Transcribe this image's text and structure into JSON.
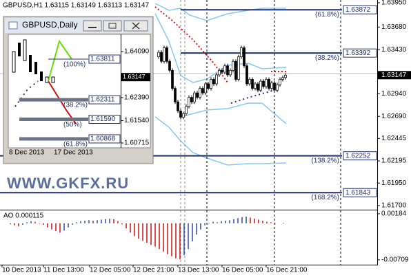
{
  "header": "GBPUSD,H1  1.63115 1.63149 1.63113 1.63147",
  "watermark": "WWW.GKFX.RU",
  "chart_data": [
    {
      "type": "candlestick",
      "ylim": [
        1.617,
        1.6395
      ],
      "yticks": [
        {
          "value": 1.6395,
          "label": "1.63950"
        },
        {
          "value": 1.6368,
          "label": "1.63680"
        },
        {
          "value": 1.6343,
          "label": "1.63430"
        },
        {
          "value": 1.6294,
          "label": "1.62940"
        },
        {
          "value": 1.6269,
          "label": "1.62690"
        },
        {
          "value": 1.62445,
          "label": "1.62445"
        },
        {
          "value": 1.62195,
          "label": "1.62195"
        },
        {
          "value": 1.6195,
          "label": "1.61950"
        },
        {
          "value": 1.617,
          "label": "1.61700"
        }
      ],
      "last": {
        "value": 1.63147,
        "label": "1.63147"
      },
      "levels": [
        {
          "value": 1.63872,
          "label": "1.63872",
          "fib": "(61.8%)"
        },
        {
          "value": 1.63392,
          "label": "1.63392",
          "fib": "(38.2%)"
        },
        {
          "value": 1.62252,
          "label": "1.62252",
          "fib": "(138.2%)"
        },
        {
          "value": 1.61843,
          "label": "1.61843",
          "fib": "(168.2%)"
        }
      ],
      "time_labels": [
        "10 Dec 2013",
        "11 Dec 13:00",
        "12 Dec 05:00",
        "12 Dec 21:00",
        "13 Dec 13:00",
        "16 Dec 05:00",
        "16 Dec 21:00"
      ],
      "values": [
        1.6335,
        1.634,
        1.633,
        1.6345,
        1.633,
        1.632,
        1.63,
        1.6285,
        1.6275,
        1.6268,
        1.6272,
        1.628,
        1.629,
        1.6285,
        1.6295,
        1.629,
        1.63,
        1.6295,
        1.6305,
        1.63,
        1.631,
        1.6305,
        1.6315,
        1.632,
        1.6318,
        1.6325,
        1.6315,
        1.632,
        1.633,
        1.631,
        1.6335,
        1.6345,
        1.6325,
        1.6305,
        1.631,
        1.63,
        1.6305,
        1.6298,
        1.6308,
        1.6302,
        1.631,
        1.63,
        1.6306,
        1.6298,
        1.6304,
        1.631,
        1.6312,
        1.63147
      ]
    },
    {
      "type": "bar",
      "title": "AO 0.000115",
      "ylim": [
        -0.0079,
        0.0025
      ],
      "yticks": [
        0.00184,
        -0.00709
      ],
      "values": [
        -0.0002,
        -0.0004,
        -0.0006,
        -0.0003,
        0.0002,
        0.0004,
        0.0003,
        0.0001,
        -0.0003,
        -0.0008,
        -0.0012,
        -0.0015,
        -0.0018,
        -0.0014,
        -0.0008,
        -0.0003,
        0.0002,
        0.0004,
        0.0005,
        0.0006,
        0.0005,
        0.0006,
        0.0007,
        0.0008,
        0.0009,
        0.0008,
        0.0004,
        -0.0002,
        -0.001,
        -0.0018,
        -0.0025,
        -0.003,
        -0.0034,
        -0.0038,
        -0.0042,
        -0.0045,
        -0.005,
        -0.0055,
        -0.006,
        -0.0064,
        -0.0068,
        -0.007,
        -0.0062,
        -0.005,
        -0.0035,
        -0.0022,
        -0.0012,
        -0.0004,
        0.0001,
        0.0003,
        0.0002,
        0.0004,
        0.0005,
        0.0006,
        0.0008,
        0.001,
        0.0012,
        0.0013,
        0.0011,
        0.0009,
        0.0007,
        0.0005,
        0.0003,
        0.0002,
        0.0001,
        0,
        0.0001
      ]
    }
  ],
  "inset": {
    "title": "GBPUSD,Daily",
    "ylim": [
      1.6056,
      1.6467
    ],
    "yticks": [
      {
        "value": 1.6409,
        "label": "1.64090"
      },
      {
        "value": 1.6239,
        "label": "1.62390"
      },
      {
        "value": 1.6154,
        "label": "1.61540"
      },
      {
        "value": 1.60715,
        "label": "1.60715"
      }
    ],
    "last": {
      "value": 1.63147,
      "label": "1.63147"
    },
    "levels": [
      {
        "value": 1.63811,
        "label": "1.63811",
        "fib": "(100%)"
      },
      {
        "value": 1.62311,
        "label": "1.62311",
        "fib": "(38.2%)"
      },
      {
        "value": 1.6159,
        "label": "1.61590",
        "fib": "(50%)"
      },
      {
        "value": 1.60868,
        "label": "1.60868",
        "fib": "(61.8%)"
      }
    ],
    "time_labels": [
      "8 Dec 2013",
      "17 Dec 2013"
    ]
  }
}
